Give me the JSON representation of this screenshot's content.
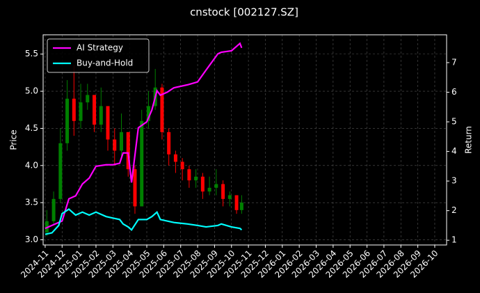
{
  "chart_data": {
    "type": "candlestick",
    "title": "cnstock [002127.SZ]",
    "ylabel": "Price",
    "y2label": "Return",
    "xlim": [
      -0.12,
      23.7
    ],
    "xticks": [
      {
        "value": 0,
        "label": "2024-11"
      },
      {
        "value": 1,
        "label": "2024-12"
      },
      {
        "value": 2,
        "label": "2025-01"
      },
      {
        "value": 3,
        "label": "2025-02"
      },
      {
        "value": 4,
        "label": "2025-03"
      },
      {
        "value": 5,
        "label": "2025-04"
      },
      {
        "value": 6,
        "label": "2025-05"
      },
      {
        "value": 7,
        "label": "2025-06"
      },
      {
        "value": 8,
        "label": "2025-07"
      },
      {
        "value": 9,
        "label": "2025-08"
      },
      {
        "value": 10,
        "label": "2025-09"
      },
      {
        "value": 11,
        "label": "2025-10"
      },
      {
        "value": 12,
        "label": "2025-11"
      },
      {
        "value": 13,
        "label": "2025-12"
      },
      {
        "value": 14,
        "label": "2026-01"
      },
      {
        "value": 15,
        "label": "2026-02"
      },
      {
        "value": 16,
        "label": "2026-03"
      },
      {
        "value": 17,
        "label": "2026-04"
      },
      {
        "value": 18,
        "label": "2026-05"
      },
      {
        "value": 19,
        "label": "2026-06"
      },
      {
        "value": 20,
        "label": "2026-07"
      },
      {
        "value": 21,
        "label": "2026-08"
      },
      {
        "value": 22,
        "label": "2026-09"
      },
      {
        "value": 23,
        "label": "2026-10"
      }
    ],
    "ylim": [
      2.93,
      5.76
    ],
    "yticks": [
      {
        "value": 3,
        "label": "3.0"
      },
      3.5,
      {
        "value": 4,
        "label": "4.0"
      },
      4.5,
      {
        "value": 5,
        "label": "5.0"
      },
      5.5
    ],
    "y2lim": [
      0.84,
      7.94
    ],
    "y2ticks": [
      1,
      2,
      3,
      4,
      5,
      6,
      7
    ],
    "grid": true,
    "legend": "upper left",
    "up_color": "#008000",
    "down_color": "#ff0000",
    "candles": {
      "x": [
        0.1,
        0.5,
        0.9,
        1.3,
        1.7,
        2.1,
        2.5,
        2.9,
        3.3,
        3.7,
        4.1,
        4.5,
        4.9,
        5.3,
        5.7,
        6.1,
        6.5,
        6.9,
        7.3,
        7.7,
        8.1,
        8.5,
        8.9,
        9.3,
        9.7,
        10.1,
        10.5,
        10.9,
        11.3,
        11.6
      ],
      "open": [
        3.1,
        3.25,
        3.55,
        4.3,
        4.9,
        4.6,
        4.85,
        4.95,
        4.55,
        4.8,
        4.35,
        4.2,
        4.45,
        3.95,
        3.45,
        4.6,
        4.8,
        5.05,
        4.45,
        4.15,
        4.05,
        3.95,
        3.8,
        3.85,
        3.65,
        3.7,
        3.75,
        3.55,
        3.6,
        3.4
      ],
      "high": [
        3.4,
        3.65,
        4.5,
        5.15,
        5.35,
        5.1,
        5.1,
        4.95,
        5.05,
        4.7,
        4.5,
        4.7,
        4.45,
        4.0,
        4.75,
        5.0,
        5.3,
        5.1,
        4.5,
        4.2,
        4.1,
        4.0,
        3.95,
        3.9,
        3.85,
        3.95,
        3.8,
        3.65,
        3.6,
        3.6
      ],
      "low": [
        3.05,
        3.2,
        3.5,
        4.2,
        4.4,
        4.5,
        4.75,
        4.45,
        4.45,
        4.2,
        4.0,
        4.1,
        3.85,
        3.35,
        3.45,
        4.5,
        4.75,
        4.35,
        4.0,
        3.9,
        3.8,
        3.7,
        3.7,
        3.55,
        3.6,
        3.6,
        3.45,
        3.45,
        3.35,
        3.35
      ],
      "close": [
        3.25,
        3.55,
        4.3,
        4.9,
        4.6,
        4.85,
        4.95,
        4.55,
        4.8,
        4.35,
        4.2,
        4.45,
        3.95,
        3.45,
        4.6,
        4.8,
        5.05,
        4.45,
        4.15,
        4.05,
        3.95,
        3.8,
        3.85,
        3.65,
        3.7,
        3.75,
        3.55,
        3.6,
        3.4,
        3.5
      ]
    },
    "x": [
      0,
      0.4,
      0.8,
      1,
      1.4,
      1.8,
      2.2,
      2.6,
      3,
      3.6,
      4,
      4.4,
      4.6,
      4.9,
      5.1,
      5.5,
      6,
      6.3,
      6.6,
      6.8,
      7.2,
      7.6,
      8.4,
      9,
      9.5,
      10.2,
      10.4,
      11,
      11.5,
      11.6
    ],
    "series": [
      {
        "name": "AI Strategy",
        "color": "#ff00ff",
        "axis": "y2",
        "values": [
          1.4,
          1.5,
          1.6,
          1.65,
          2.4,
          2.5,
          2.9,
          3.1,
          3.5,
          3.55,
          3.55,
          3.6,
          3.95,
          3.95,
          2.95,
          4.8,
          5.0,
          5.4,
          6.05,
          5.9,
          6.0,
          6.15,
          6.25,
          6.35,
          6.75,
          7.3,
          7.35,
          7.4,
          7.65,
          7.5
        ]
      },
      {
        "name": "Buy-and-Hold",
        "color": "#00ffff",
        "axis": "y2",
        "values": [
          1.2,
          1.25,
          1.5,
          1.9,
          2.05,
          1.85,
          1.95,
          1.85,
          1.95,
          1.8,
          1.75,
          1.7,
          1.55,
          1.45,
          1.35,
          1.7,
          1.7,
          1.8,
          1.95,
          1.7,
          1.65,
          1.6,
          1.55,
          1.5,
          1.45,
          1.5,
          1.55,
          1.45,
          1.4,
          1.35
        ]
      }
    ]
  }
}
